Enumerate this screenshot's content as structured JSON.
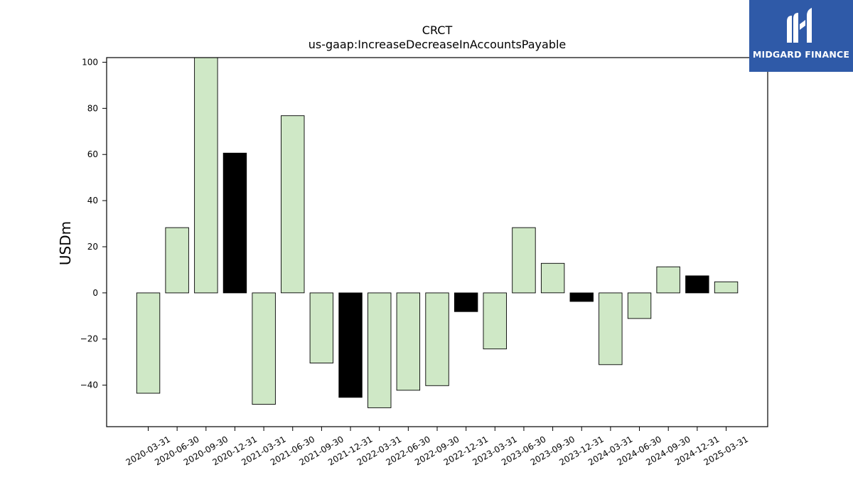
{
  "chart_data": {
    "type": "bar",
    "title": "CRCT",
    "subtitle": "us-gaap:IncreaseDecreaseInAccountsPayable",
    "ylabel": "USDm",
    "xlabel": "",
    "ylim": [
      -58,
      102
    ],
    "yticks": [
      -40,
      -20,
      0,
      20,
      40,
      60,
      80,
      100
    ],
    "categories": [
      "2020-03-31",
      "2020-06-30",
      "2020-09-30",
      "2020-12-31",
      "2021-03-31",
      "2021-06-30",
      "2021-09-30",
      "2021-12-31",
      "2022-03-31",
      "2022-06-30",
      "2022-09-30",
      "2022-12-31",
      "2023-03-31",
      "2023-06-30",
      "2023-09-30",
      "2023-12-31",
      "2024-03-31",
      "2024-06-30",
      "2024-09-30",
      "2024-12-31",
      "2025-03-31"
    ],
    "values": [
      -43.5,
      28.3,
      103,
      60.6,
      -48.3,
      76.8,
      -30.4,
      -45.3,
      -49.8,
      -42.2,
      -40.2,
      -8.1,
      -24.3,
      28.3,
      12.8,
      -3.7,
      -31.1,
      -11.1,
      11.3,
      7.4,
      4.8
    ],
    "highlight": [
      false,
      false,
      false,
      true,
      false,
      false,
      false,
      true,
      false,
      false,
      false,
      true,
      false,
      false,
      false,
      true,
      false,
      false,
      false,
      true,
      false
    ],
    "colors": {
      "default": "#cfe8c6",
      "highlight": "#000000",
      "edge": "#000000"
    },
    "grid": false,
    "legend": "none"
  },
  "logo": {
    "text": "MIDGARD FINANCE",
    "background": "#2f5aa8",
    "icon": "midgard-logo-mark"
  }
}
